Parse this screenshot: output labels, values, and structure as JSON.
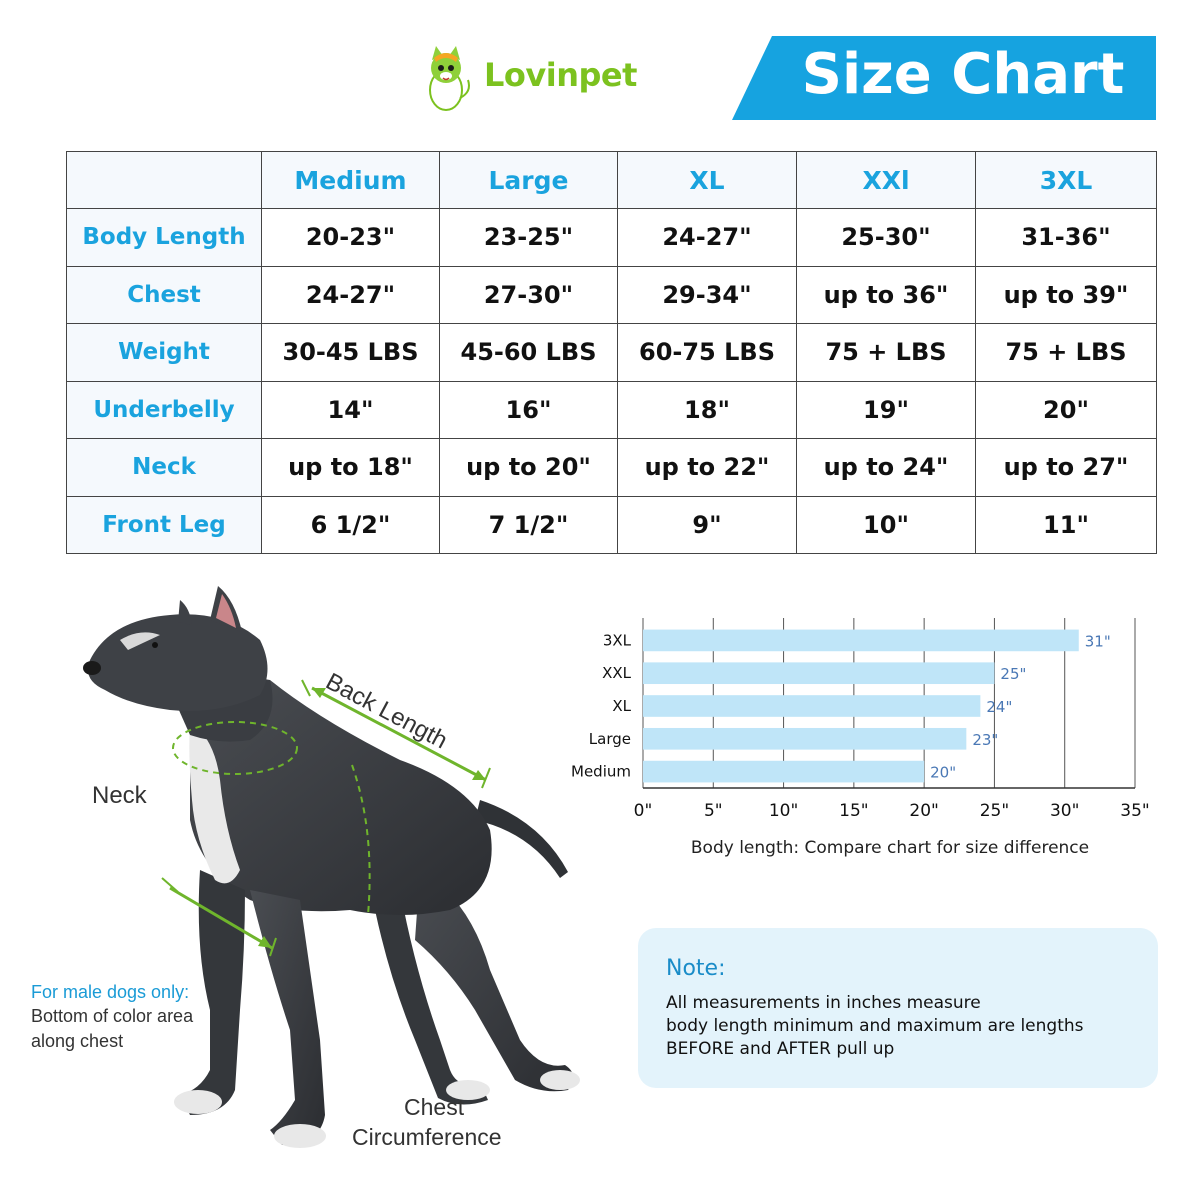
{
  "brand": {
    "name": "Lovinpet"
  },
  "title": "Size Chart",
  "size_table": {
    "columns": [
      "Medium",
      "Large",
      "XL",
      "XXl",
      "3XL"
    ],
    "rows": [
      {
        "label": "Body Length",
        "values": [
          "20-23\"",
          "23-25\"",
          "24-27\"",
          "25-30\"",
          "31-36\""
        ]
      },
      {
        "label": "Chest",
        "values": [
          "24-27\"",
          "27-30\"",
          "29-34\"",
          "up to 36\"",
          "up to 39\""
        ]
      },
      {
        "label": "Weight",
        "values": [
          "30-45 LBS",
          "45-60 LBS",
          "60-75 LBS",
          "75 + LBS",
          "75 + LBS"
        ]
      },
      {
        "label": "Underbelly",
        "values": [
          "14\"",
          "16\"",
          "18\"",
          "19\"",
          "20\""
        ]
      },
      {
        "label": "Neck",
        "values": [
          "up to 18\"",
          "up to 20\"",
          "up to 22\"",
          "up to 24\"",
          "up to 27\""
        ]
      },
      {
        "label": "Front Leg",
        "values": [
          "6 1/2\"",
          "7 1/2\"",
          "9\"",
          "10\"",
          "11\""
        ]
      }
    ]
  },
  "dog_figure": {
    "labels": {
      "neck": "Neck",
      "back_length": "Back Length",
      "male_title": "For male dogs only:",
      "male_line1": "Bottom of color area",
      "male_line2": "along chest",
      "chest_line1": "Chest",
      "chest_line2": "Circumference"
    }
  },
  "chart_data": {
    "type": "bar",
    "orientation": "horizontal",
    "categories": [
      "3XL",
      "XXL",
      "XL",
      "Large",
      "Medium"
    ],
    "values": [
      31,
      25,
      24,
      23,
      20
    ],
    "value_labels": [
      "31\"",
      "25\"",
      "24\"",
      "23\"",
      "20\""
    ],
    "xlim": [
      0,
      35
    ],
    "xticks": [
      "0\"",
      "5\"",
      "10\"",
      "15\"",
      "20\"",
      "25\"",
      "30\"",
      "35\""
    ],
    "caption": "Body length: Compare chart for size difference",
    "grid": true,
    "colors": {
      "bar": "#bfe5f8",
      "value_label": "#4a78b5"
    }
  },
  "note": {
    "title": "Note:",
    "lines": [
      "All measurements in inches measure",
      "body length minimum and maximum are lengths",
      "BEFORE and AFTER pull up"
    ]
  },
  "colors": {
    "accent": "#1aa3de",
    "banner": "#16a3e0",
    "logo_green": "#7cc21f",
    "note_bg": "#e3f3fb",
    "guide_green": "#6fb52c"
  }
}
